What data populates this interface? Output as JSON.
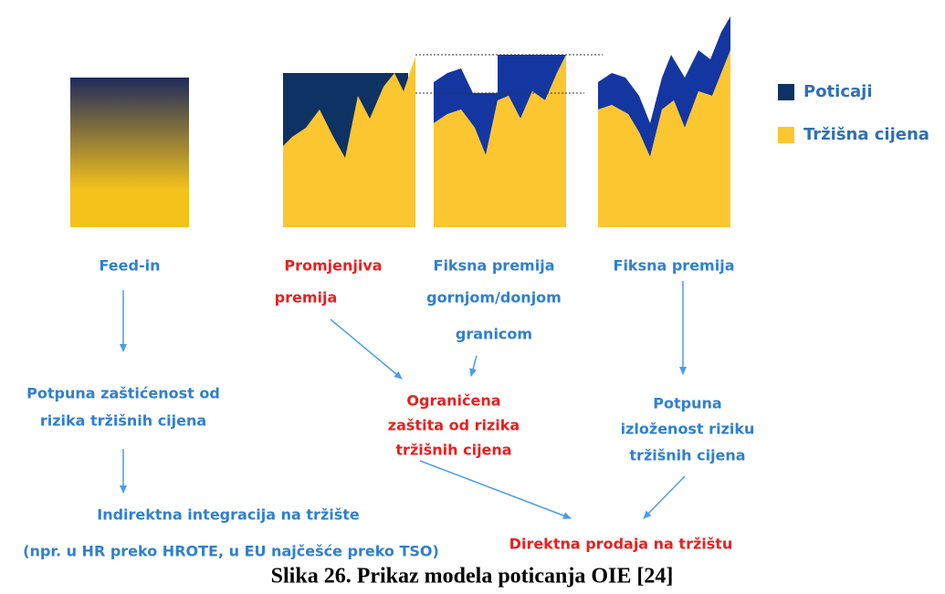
{
  "legend": {
    "premium": "Poticaji",
    "market": "Tržišna cijena"
  },
  "models": [
    {
      "lines": [
        "Feed-in"
      ]
    },
    {
      "lines": [
        "Promjenjiva",
        "premija"
      ]
    },
    {
      "lines": [
        "Fiksna premija",
        "gornjom/donjom",
        "granicom"
      ]
    },
    {
      "lines": [
        "Fiksna premija"
      ]
    }
  ],
  "outcomes": [
    {
      "lines": [
        "Potpuna zaštićenost od",
        "rizika tržišnih cijena"
      ]
    },
    {
      "lines": [
        "Ograničena",
        "zaštita od rizika",
        "tržišnih cijena"
      ]
    },
    {
      "lines": [
        "Potpuna",
        "izloženost riziku",
        "tržišnih cijena"
      ]
    }
  ],
  "integration": {
    "indirect": "Indirektna integracija na tržište",
    "indirect_note": "(npr. u HR preko HROTE, u EU najčešće preko TSO)",
    "direct": "Direktna prodaja na tržištu"
  },
  "caption": "Slika 26. Prikaz modela poticanja OIE [24]"
}
